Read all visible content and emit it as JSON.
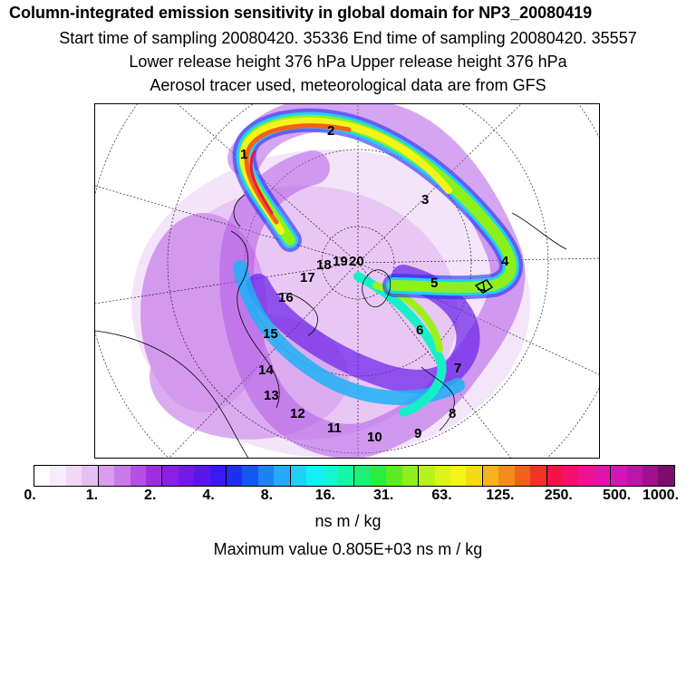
{
  "header": {
    "title": "Column-integrated emission sensitivity in global domain for NP3_20080419",
    "line2": "Start time of sampling 20080420. 35336     End time of sampling 20080420. 35557",
    "line3": "Lower release height  376 hPa        Upper release height  376 hPa",
    "line4": "Aerosol tracer used, meteorological data are from GFS"
  },
  "map": {
    "projection": "north-polar-stereographic",
    "track_labels": [
      "1",
      "2",
      "3",
      "4",
      "5",
      "6",
      "7",
      "8",
      "9",
      "10",
      "11",
      "12",
      "13",
      "14",
      "15",
      "16",
      "17",
      "18",
      "19",
      "20"
    ]
  },
  "colorbar": {
    "colors": [
      "#ffffff",
      "#f7ecfb",
      "#f1d8f7",
      "#e8bff3",
      "#d99cee",
      "#c979ea",
      "#b54fe6",
      "#a12de2",
      "#8a1fe6",
      "#7219ea",
      "#5a16ee",
      "#3a18f0",
      "#1f2ef3",
      "#1557f5",
      "#1e82f7",
      "#23aaf8",
      "#1dd2f8",
      "#15f0f4",
      "#16f5d2",
      "#17f5a5",
      "#18f275",
      "#28ee3e",
      "#5aee1c",
      "#8ef01a",
      "#b9f21a",
      "#dcf41a",
      "#f4f41a",
      "#f5da18",
      "#f5b418",
      "#f58c18",
      "#f56018",
      "#f53226",
      "#f5124a",
      "#f3106f",
      "#ef1194",
      "#e612ae",
      "#d614b8",
      "#bf13a8",
      "#a1108e",
      "#7d0c6e"
    ],
    "tick_labels": [
      "0.",
      "1.",
      "2.",
      "4.",
      "8.",
      "16.",
      "31.",
      "63.",
      "125.",
      "250.",
      "500.",
      "1000."
    ],
    "units": "ns m / kg",
    "max_value_text": "Maximum value  0.805E+03 ns m / kg"
  }
}
